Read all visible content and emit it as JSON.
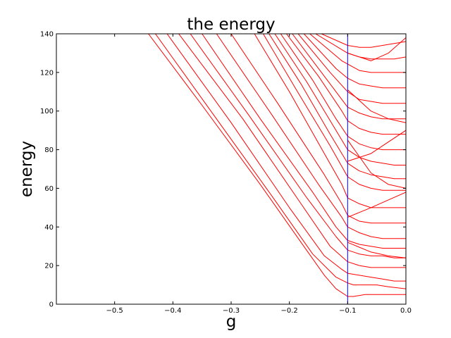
{
  "chart_data": {
    "type": "line",
    "title": "the energy",
    "xlabel": "g",
    "ylabel": "energy",
    "xlim": [
      -0.6,
      0.0
    ],
    "ylim": [
      0,
      140
    ],
    "xticks": [
      -0.5,
      -0.4,
      -0.3,
      -0.2,
      -0.1,
      0.0
    ],
    "xtick_labels": [
      "−0.5",
      "−0.4",
      "−0.3",
      "−0.2",
      "−0.1",
      "0.0"
    ],
    "yticks": [
      0,
      20,
      40,
      60,
      80,
      100,
      120,
      140
    ],
    "ytick_labels": [
      "0",
      "20",
      "40",
      "60",
      "80",
      "100",
      "120",
      "140"
    ],
    "grid": false,
    "line_color": "#ff0000",
    "marker_line": {
      "x": -0.1,
      "color": "#0000ff"
    },
    "series": [
      {
        "x": [
          -0.442,
          -0.35,
          -0.25,
          -0.18,
          -0.14,
          -0.12,
          -0.1,
          -0.09,
          -0.07,
          -0.05,
          -0.03,
          0.0
        ],
        "values": [
          140,
          103,
          62,
          32,
          15,
          8,
          4,
          4,
          5,
          5,
          5,
          5
        ]
      },
      {
        "x": [
          -0.43,
          -0.33,
          -0.23,
          -0.16,
          -0.12,
          -0.1,
          -0.09,
          -0.07,
          -0.05,
          -0.03,
          0.0
        ],
        "values": [
          140,
          98,
          56,
          26,
          14,
          11,
          10,
          10,
          10,
          9,
          8
        ]
      },
      {
        "x": [
          -0.41,
          -0.3,
          -0.2,
          -0.14,
          -0.11,
          -0.1,
          -0.08,
          -0.06,
          -0.04,
          -0.02,
          0.0
        ],
        "values": [
          140,
          94,
          50,
          25,
          18,
          16,
          15,
          14,
          13,
          12,
          12
        ]
      },
      {
        "x": [
          -0.39,
          -0.28,
          -0.18,
          -0.13,
          -0.1,
          -0.08,
          -0.06,
          -0.04,
          -0.02,
          0.0
        ],
        "values": [
          140,
          96,
          52,
          30,
          22,
          20,
          19,
          19,
          19,
          19
        ]
      },
      {
        "x": [
          -0.37,
          -0.27,
          -0.17,
          -0.12,
          -0.1,
          -0.08,
          -0.06,
          -0.04,
          -0.02,
          0.0
        ],
        "values": [
          140,
          98,
          55,
          35,
          28,
          26,
          25,
          25,
          24,
          24
        ]
      },
      {
        "x": [
          -0.35,
          -0.25,
          -0.16,
          -0.12,
          -0.1,
          -0.08,
          -0.06,
          -0.04,
          -0.02,
          0.0
        ],
        "values": [
          140,
          96,
          58,
          40,
          33,
          31,
          30,
          29,
          29,
          29
        ]
      },
      {
        "x": [
          -0.325,
          -0.23,
          -0.15,
          -0.11,
          -0.1,
          -0.08,
          -0.06,
          -0.04,
          -0.02,
          0.0
        ],
        "values": [
          140,
          98,
          62,
          45,
          40,
          37,
          35,
          34,
          34,
          34
        ]
      },
      {
        "x": [
          -0.3,
          -0.22,
          -0.14,
          -0.11,
          -0.1,
          -0.08,
          -0.06,
          -0.04,
          -0.02,
          0.0
        ],
        "values": [
          140,
          104,
          67,
          52,
          46,
          43,
          42,
          42,
          42,
          42
        ]
      },
      {
        "x": [
          -0.26,
          -0.2,
          -0.14,
          -0.11,
          -0.1,
          -0.08,
          -0.06,
          -0.04,
          -0.02,
          0.0
        ],
        "values": [
          140,
          110,
          78,
          62,
          55,
          52,
          50,
          50,
          50,
          50
        ]
      },
      {
        "x": [
          -0.245,
          -0.19,
          -0.13,
          -0.1,
          -0.08,
          -0.06,
          -0.04,
          -0.02,
          0.0
        ],
        "values": [
          140,
          112,
          82,
          66,
          62,
          60,
          59,
          59,
          59
        ]
      },
      {
        "x": [
          -0.235,
          -0.18,
          -0.13,
          -0.1,
          -0.08,
          -0.06,
          -0.04,
          -0.02,
          0.0
        ],
        "values": [
          140,
          114,
          88,
          73,
          69,
          67,
          66,
          65,
          65
        ]
      },
      {
        "x": [
          -0.225,
          -0.17,
          -0.12,
          -0.1,
          -0.08,
          -0.06,
          -0.04,
          -0.02,
          0.0
        ],
        "values": [
          140,
          115,
          90,
          80,
          76,
          74,
          73,
          72,
          72
        ]
      },
      {
        "x": [
          -0.215,
          -0.16,
          -0.12,
          -0.1,
          -0.08,
          -0.06,
          -0.04,
          -0.02,
          0.0
        ],
        "values": [
          140,
          116,
          96,
          87,
          83,
          81,
          80,
          80,
          80
        ]
      },
      {
        "x": [
          -0.205,
          -0.15,
          -0.11,
          -0.1,
          -0.08,
          -0.06,
          -0.04,
          -0.02,
          0.0
        ],
        "values": [
          140,
          118,
          100,
          95,
          91,
          89,
          88,
          88,
          88
        ]
      },
      {
        "x": [
          -0.195,
          -0.14,
          -0.11,
          -0.1,
          -0.08,
          -0.06,
          -0.04,
          -0.02,
          0.0
        ],
        "values": [
          140,
          118,
          106,
          102,
          99,
          97,
          96,
          96,
          96
        ]
      },
      {
        "x": [
          -0.185,
          -0.13,
          -0.1,
          -0.08,
          -0.06,
          -0.04,
          -0.02,
          0.0
        ],
        "values": [
          140,
          120,
          110,
          106,
          105,
          104,
          104,
          104
        ]
      },
      {
        "x": [
          -0.175,
          -0.12,
          -0.1,
          -0.08,
          -0.06,
          -0.04,
          -0.02,
          0.0
        ],
        "values": [
          140,
          122,
          117,
          114,
          113,
          112,
          112,
          112
        ]
      },
      {
        "x": [
          -0.165,
          -0.11,
          -0.08,
          -0.06,
          -0.04,
          -0.02,
          0.0
        ],
        "values": [
          140,
          126,
          121,
          120,
          120,
          120,
          120
        ]
      },
      {
        "x": [
          -0.155,
          -0.1,
          -0.08,
          -0.06,
          -0.04,
          -0.02,
          0.0
        ],
        "values": [
          140,
          130,
          128,
          127,
          127,
          127,
          128
        ]
      },
      {
        "x": [
          -0.145,
          -0.1,
          -0.08,
          -0.06,
          -0.04,
          -0.02,
          0.0
        ],
        "values": [
          140,
          134,
          133,
          133,
          134,
          135,
          136
        ]
      },
      {
        "x": [
          -0.1,
          -0.06,
          -0.03,
          0.0
        ],
        "values": [
          85,
          68,
          62,
          60
        ]
      },
      {
        "x": [
          -0.1,
          -0.06,
          -0.03,
          0.0
        ],
        "values": [
          74,
          78,
          84,
          90
        ]
      },
      {
        "x": [
          -0.1,
          -0.06,
          -0.03,
          0.0
        ],
        "values": [
          45,
          50,
          54,
          58
        ]
      },
      {
        "x": [
          -0.1,
          -0.06,
          -0.03,
          0.0
        ],
        "values": [
          130,
          126,
          130,
          138
        ]
      },
      {
        "x": [
          -0.1,
          -0.06,
          -0.03,
          0.0
        ],
        "values": [
          32,
          27,
          25,
          24
        ]
      },
      {
        "x": [
          -0.1,
          -0.06,
          -0.03,
          0.0
        ],
        "values": [
          111,
          100,
          96,
          94
        ]
      }
    ]
  }
}
